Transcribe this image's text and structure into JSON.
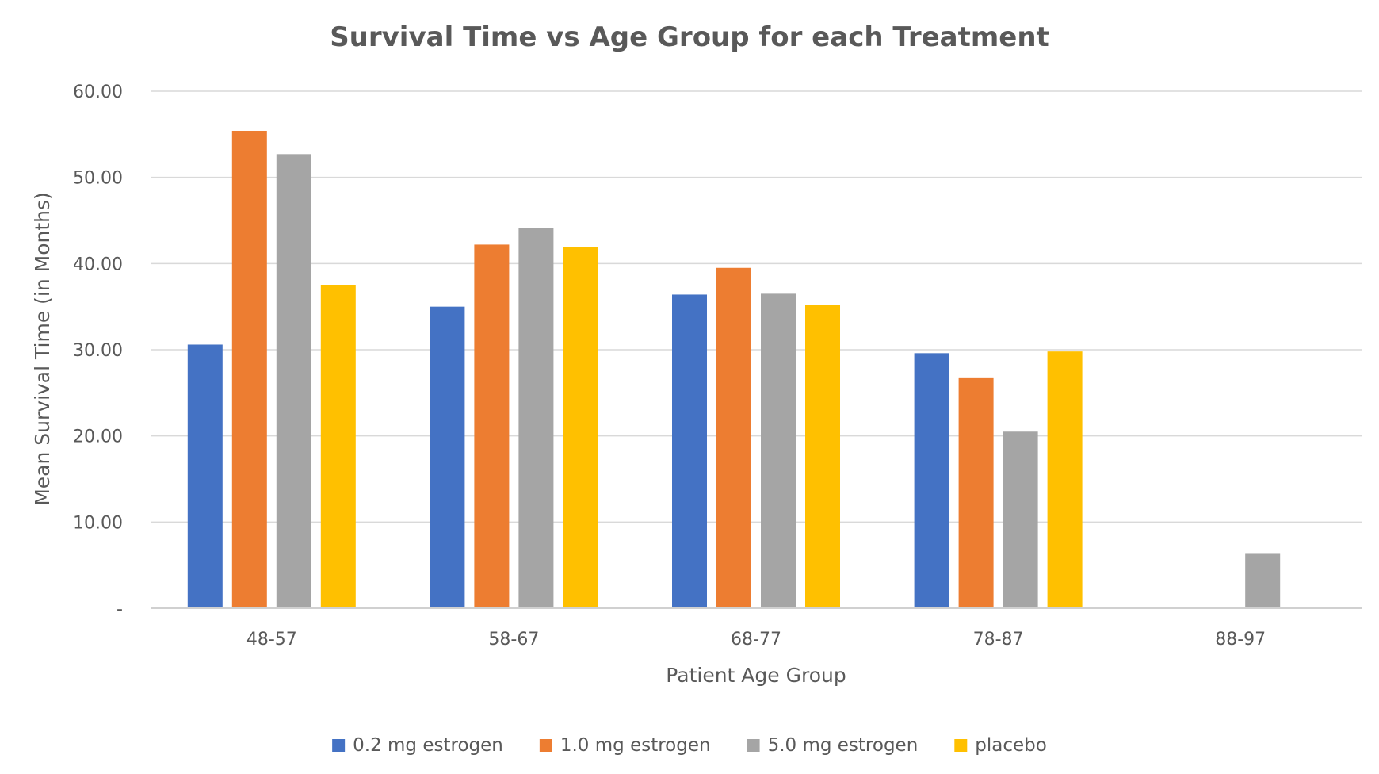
{
  "chart_data": {
    "type": "bar",
    "title": "Survival Time vs Age Group for each Treatment",
    "xlabel": "Patient Age Group",
    "ylabel": "Mean Survival Time (in Months)",
    "categories": [
      "48-57",
      "58-67",
      "68-77",
      "78-87",
      "88-97"
    ],
    "ylim": [
      0,
      60
    ],
    "yticks": [
      0,
      10,
      20,
      30,
      40,
      50,
      60
    ],
    "ytick_labels": [
      "-",
      "10.00",
      "20.00",
      "30.00",
      "40.00",
      "50.00",
      "60.00"
    ],
    "grid": true,
    "legend_position": "bottom",
    "series": [
      {
        "name": "0.2 mg estrogen",
        "color": "#4472C4",
        "values": [
          30.6,
          35.0,
          36.4,
          29.6,
          null
        ]
      },
      {
        "name": "1.0 mg estrogen",
        "color": "#ED7D31",
        "values": [
          55.4,
          42.2,
          39.5,
          26.7,
          null
        ]
      },
      {
        "name": "5.0 mg estrogen",
        "color": "#A5A5A5",
        "values": [
          52.7,
          44.1,
          36.5,
          20.5,
          6.4
        ]
      },
      {
        "name": "placebo",
        "color": "#FFC000",
        "values": [
          37.5,
          41.9,
          35.2,
          29.8,
          null
        ]
      }
    ]
  }
}
